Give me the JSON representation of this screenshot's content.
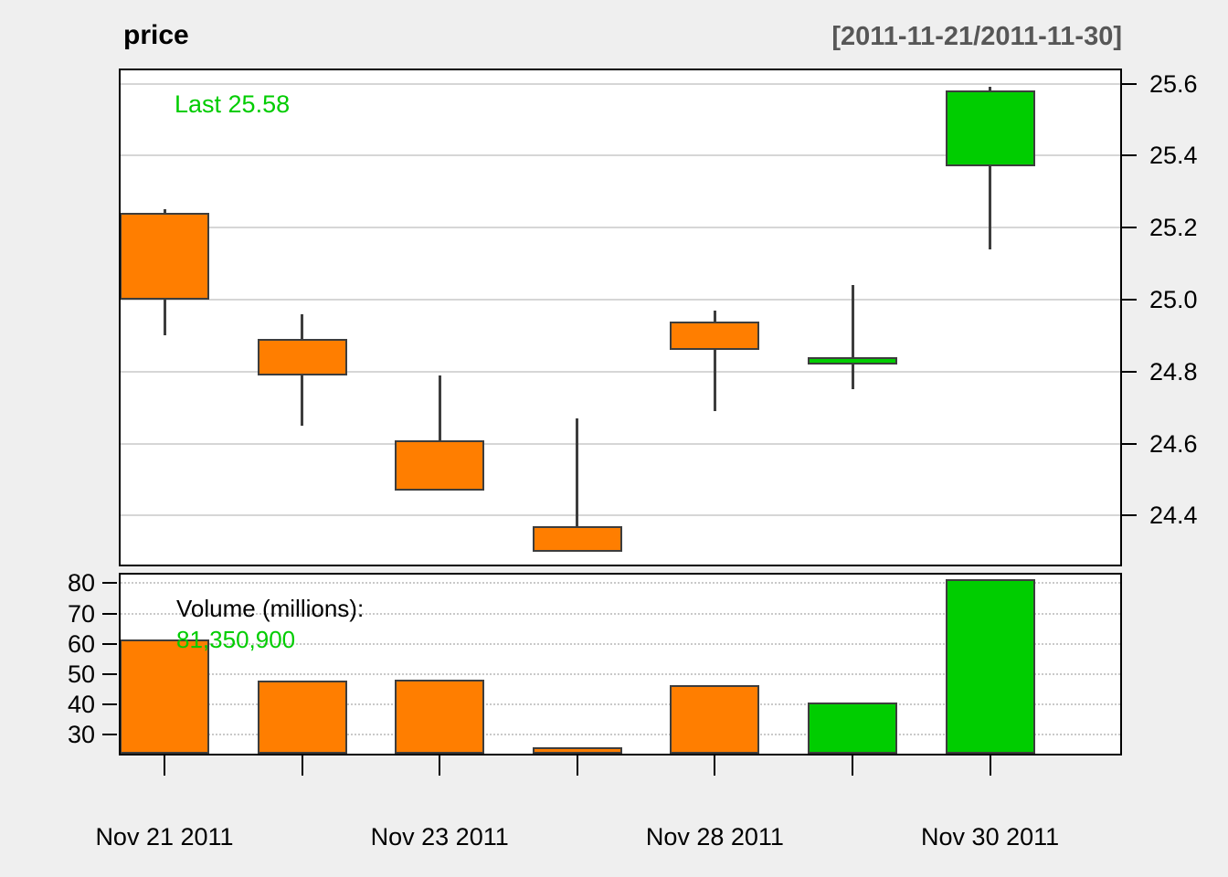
{
  "header": {
    "title": "price",
    "date_range": "[2011-11-21/2011-11-30]"
  },
  "price_panel": {
    "last_label": "Last 25.58"
  },
  "volume_panel": {
    "title": "Volume (millions):",
    "last_volume": "81,350,900"
  },
  "colors": {
    "up": "#00CD00",
    "down": "#FF7E00",
    "candle_border": "#3D3D3D",
    "grid_solid": "#D6D6D6",
    "grid_dotted": "#C9C9C9",
    "panel_border": "#000000",
    "background": "#EFEFEF",
    "green_text": "#00CC00",
    "date_range_text": "#575757"
  },
  "chart_data": {
    "type": "candlestick_with_volume",
    "title": "price",
    "subtitle": "[2011-11-21/2011-11-30]",
    "last_price": 25.58,
    "candles": [
      {
        "open": 25.24,
        "high": 25.25,
        "low": 24.9,
        "close": 25.0,
        "volume_millions": 61.4,
        "direction": "down"
      },
      {
        "open": 24.89,
        "high": 24.96,
        "low": 24.65,
        "close": 24.79,
        "volume_millions": 47.9,
        "direction": "down"
      },
      {
        "open": 24.61,
        "high": 24.79,
        "low": 24.47,
        "close": 24.47,
        "volume_millions": 48.3,
        "direction": "down"
      },
      {
        "open": 24.37,
        "high": 24.67,
        "low": 24.3,
        "close": 24.3,
        "volume_millions": 25.9,
        "direction": "down"
      },
      {
        "open": 24.94,
        "high": 24.97,
        "low": 24.69,
        "close": 24.86,
        "volume_millions": 46.4,
        "direction": "down"
      },
      {
        "open": 24.82,
        "high": 25.04,
        "low": 24.75,
        "close": 24.84,
        "volume_millions": 40.7,
        "direction": "up"
      },
      {
        "open": 25.37,
        "high": 25.59,
        "low": 25.14,
        "close": 25.58,
        "volume_millions": 81.4,
        "direction": "up"
      }
    ],
    "price_ticks": [
      25.6,
      25.4,
      25.2,
      25.0,
      24.8,
      24.6,
      24.4
    ],
    "price_range": [
      24.26,
      25.64
    ],
    "volume_ticks": [
      80,
      70,
      60,
      50,
      40,
      30
    ],
    "volume_range": [
      23.8,
      82.8
    ],
    "x_tick_labels": [
      {
        "index": 0,
        "label": "Nov 21 2011"
      },
      {
        "index": 2,
        "label": "Nov 23 2011"
      },
      {
        "index": 4,
        "label": "Nov 28 2011"
      },
      {
        "index": 6,
        "label": "Nov 30 2011"
      }
    ],
    "legend_position": "none",
    "grid": "on"
  }
}
